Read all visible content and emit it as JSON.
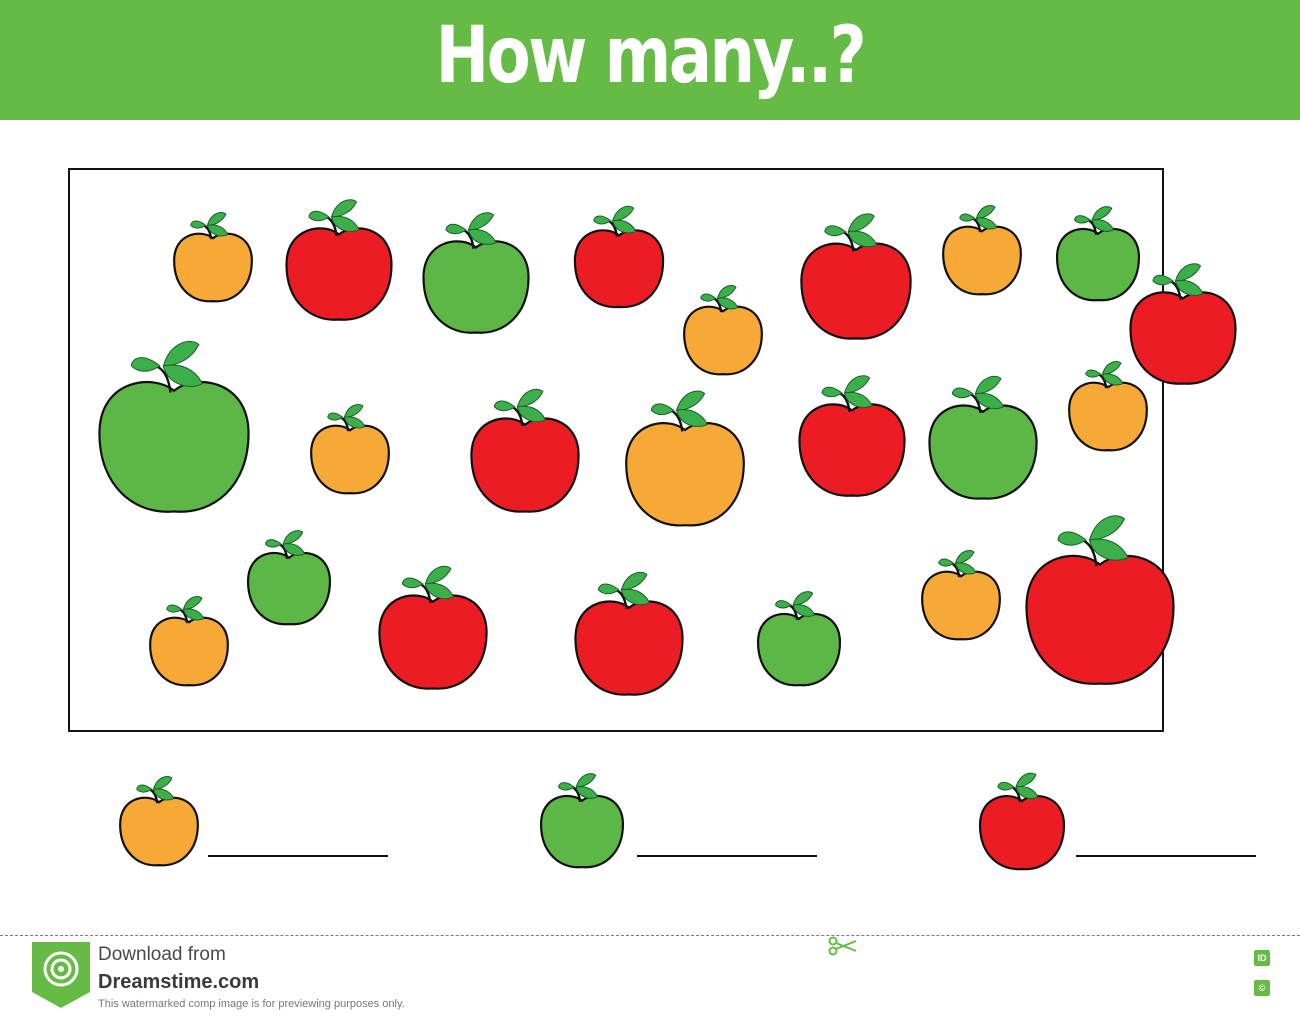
{
  "header": {
    "title": "How many..?"
  },
  "colors": {
    "header_bg": "#66bb46",
    "apple_orange": "#f6a937",
    "apple_red": "#ec1c24",
    "apple_green": "#5cb746",
    "leaf": "#3daf4a"
  },
  "icons": {
    "orange": "orange-apple-icon",
    "green": "green-apple-icon",
    "red": "red-apple-icon",
    "scissors": "scissors-icon",
    "logo": "spiral-logo-icon"
  },
  "apples": [
    {
      "color": "orange"
    },
    {
      "color": "red"
    },
    {
      "color": "green"
    },
    {
      "color": "red"
    },
    {
      "color": "orange"
    },
    {
      "color": "red"
    },
    {
      "color": "orange"
    },
    {
      "color": "green"
    },
    {
      "color": "red"
    },
    {
      "color": "green"
    },
    {
      "color": "orange"
    },
    {
      "color": "red"
    },
    {
      "color": "orange"
    },
    {
      "color": "red"
    },
    {
      "color": "green"
    },
    {
      "color": "orange"
    },
    {
      "color": "orange"
    },
    {
      "color": "green"
    },
    {
      "color": "red"
    },
    {
      "color": "red"
    },
    {
      "color": "green"
    },
    {
      "color": "orange"
    },
    {
      "color": "red"
    }
  ],
  "answers": [
    {
      "color": "orange",
      "value": ""
    },
    {
      "color": "green",
      "value": ""
    },
    {
      "color": "red",
      "value": ""
    }
  ],
  "footer": {
    "line1": "Download from",
    "line2": "Dreamstime.com",
    "line3": "This watermarked comp image is for previewing purposes only.",
    "badge_id": "ID",
    "badge_c": "©"
  }
}
